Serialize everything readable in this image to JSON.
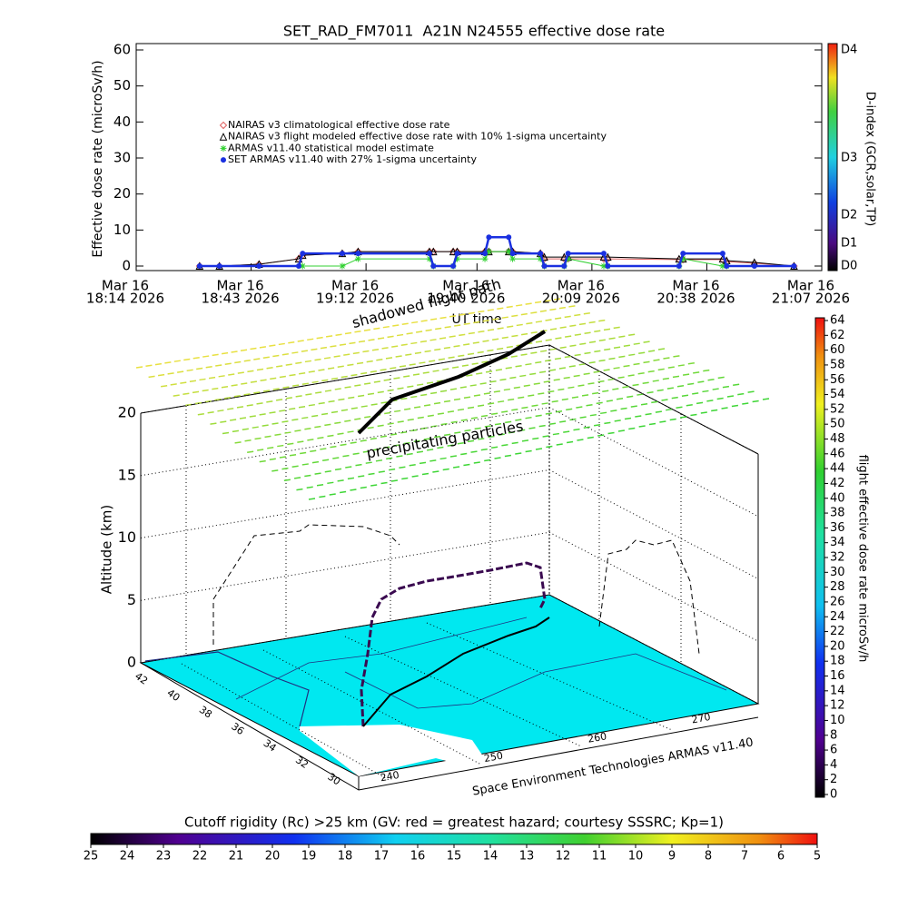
{
  "chart_data": [
    {
      "type": "line",
      "title": "SET_RAD_FM7011  A21N N24555 effective dose rate",
      "ylabel": "Effective dose rate (microSv/h)",
      "xlabel": "UT time",
      "xlim": [
        "2026-03-16T18:14",
        "2026-03-16T21:07"
      ],
      "xticks": [
        {
          "value": "2026-03-16T18:14",
          "label": [
            "Mar 16",
            "18:14 2026"
          ]
        },
        {
          "value": "2026-03-16T18:43",
          "label": [
            "Mar 16",
            "18:43 2026"
          ]
        },
        {
          "value": "2026-03-16T19:12",
          "label": [
            "Mar 16",
            "19:12 2026"
          ]
        },
        {
          "value": "2026-03-16T19:40",
          "label": [
            "Mar 16",
            "19:40 2026"
          ]
        },
        {
          "value": "2026-03-16T20:09",
          "label": [
            "Mar 16",
            "20:09 2026"
          ]
        },
        {
          "value": "2026-03-16T20:38",
          "label": [
            "Mar 16",
            "20:38 2026"
          ]
        },
        {
          "value": "2026-03-16T21:07",
          "label": [
            "Mar 16",
            "21:07 2026"
          ]
        }
      ],
      "ylim": [
        0,
        60
      ],
      "yticks": [
        0,
        10,
        20,
        30,
        40,
        50,
        60
      ],
      "x": [
        "2026-03-16T18:30",
        "2026-03-16T18:35",
        "2026-03-16T18:45",
        "2026-03-16T18:55",
        "2026-03-16T18:56",
        "2026-03-16T19:06",
        "2026-03-16T19:10",
        "2026-03-16T19:28",
        "2026-03-16T19:29",
        "2026-03-16T19:34",
        "2026-03-16T19:35",
        "2026-03-16T19:42",
        "2026-03-16T19:43",
        "2026-03-16T19:48",
        "2026-03-16T19:49",
        "2026-03-16T19:56",
        "2026-03-16T19:57",
        "2026-03-16T20:02",
        "2026-03-16T20:03",
        "2026-03-16T20:12",
        "2026-03-16T20:13",
        "2026-03-16T20:31",
        "2026-03-16T20:32",
        "2026-03-16T20:42",
        "2026-03-16T20:43",
        "2026-03-16T20:50",
        "2026-03-16T21:00"
      ],
      "series": [
        {
          "name": "NAIRAS v3 climatological effective dose rate",
          "color": "#e06060",
          "marker": "diamond",
          "values": [
            0,
            0,
            0.5,
            2,
            3,
            3.5,
            4,
            4,
            4,
            4,
            4,
            4,
            4,
            4,
            4,
            3.5,
            2,
            2,
            2,
            2,
            2,
            1.8,
            1.8,
            1.8,
            1.2,
            0.8,
            0
          ]
        },
        {
          "name": "NAIRAS v3 flight modeled effective dose rate with 10% 1-sigma uncertainty",
          "color": "#000000",
          "marker": "triangle",
          "values": [
            0,
            0,
            0.5,
            2,
            3,
            3.5,
            4,
            4,
            4,
            4,
            4,
            4,
            4,
            4,
            4,
            3.5,
            2.5,
            2.5,
            2.5,
            2.5,
            2.5,
            2,
            2,
            2,
            1.5,
            1,
            0
          ]
        },
        {
          "name": "ARMAS v11.40 statistical model estimate",
          "color": "#30d030",
          "marker": "asterisk",
          "values": [
            null,
            null,
            null,
            null,
            0,
            0,
            2,
            2,
            0,
            0,
            2,
            2,
            4,
            4,
            2,
            2,
            0,
            0,
            2,
            0,
            0,
            0,
            2,
            0,
            0,
            null,
            null
          ]
        },
        {
          "name": "SET ARMAS v11.40 with 27% 1-sigma uncertainty",
          "color": "#1a30e0",
          "marker": "circle",
          "values": [
            0,
            0,
            0,
            0,
            3.5,
            3.5,
            3.5,
            3.5,
            0,
            0,
            3.5,
            3.5,
            8,
            8,
            3.5,
            3.5,
            0,
            0,
            3.5,
            3.5,
            0,
            0,
            3.5,
            3.5,
            0,
            0,
            0
          ]
        }
      ],
      "colorbar": {
        "label": "D-index (GCR,solar,TP)",
        "ticks": [
          "D0",
          "D1",
          "D2",
          "D3",
          "D4"
        ]
      }
    },
    {
      "type": "surface3d",
      "annotations": [
        "shadowed flight path",
        "precipitating particles"
      ],
      "ylabel": "Altitude (km)",
      "ylim": [
        0,
        20
      ],
      "yticks": [
        0,
        5,
        10,
        15,
        20
      ],
      "latlim": [
        42.3,
        29.3
      ],
      "lat_ticks": [
        42,
        40,
        38,
        36,
        34,
        32,
        30
      ],
      "lonlim": [
        237,
        275.5
      ],
      "lon_ticks": [
        240,
        250,
        260,
        270
      ],
      "credit": "Space Environment Technologies ARMAS v11.40",
      "colorbar": {
        "label": "flight effective dose rate microSv/h",
        "lim": [
          0,
          64
        ],
        "ticks": [
          0,
          2,
          4,
          6,
          8,
          10,
          12,
          14,
          16,
          18,
          20,
          22,
          24,
          26,
          28,
          30,
          32,
          34,
          36,
          38,
          40,
          42,
          44,
          46,
          48,
          50,
          52,
          54,
          56,
          58,
          60,
          62,
          64
        ]
      },
      "rigidity_bar": {
        "title": "Cutoff rigidity (Rc) >25 km (GV: red = greatest hazard; courtesy SSSRC; Kp=1)",
        "lim": [
          25,
          5
        ],
        "ticks": [
          25,
          24,
          23,
          22,
          21,
          20,
          19,
          18,
          17,
          16,
          15,
          14,
          13,
          12,
          11,
          10,
          9,
          8,
          7,
          6,
          5
        ]
      }
    }
  ]
}
